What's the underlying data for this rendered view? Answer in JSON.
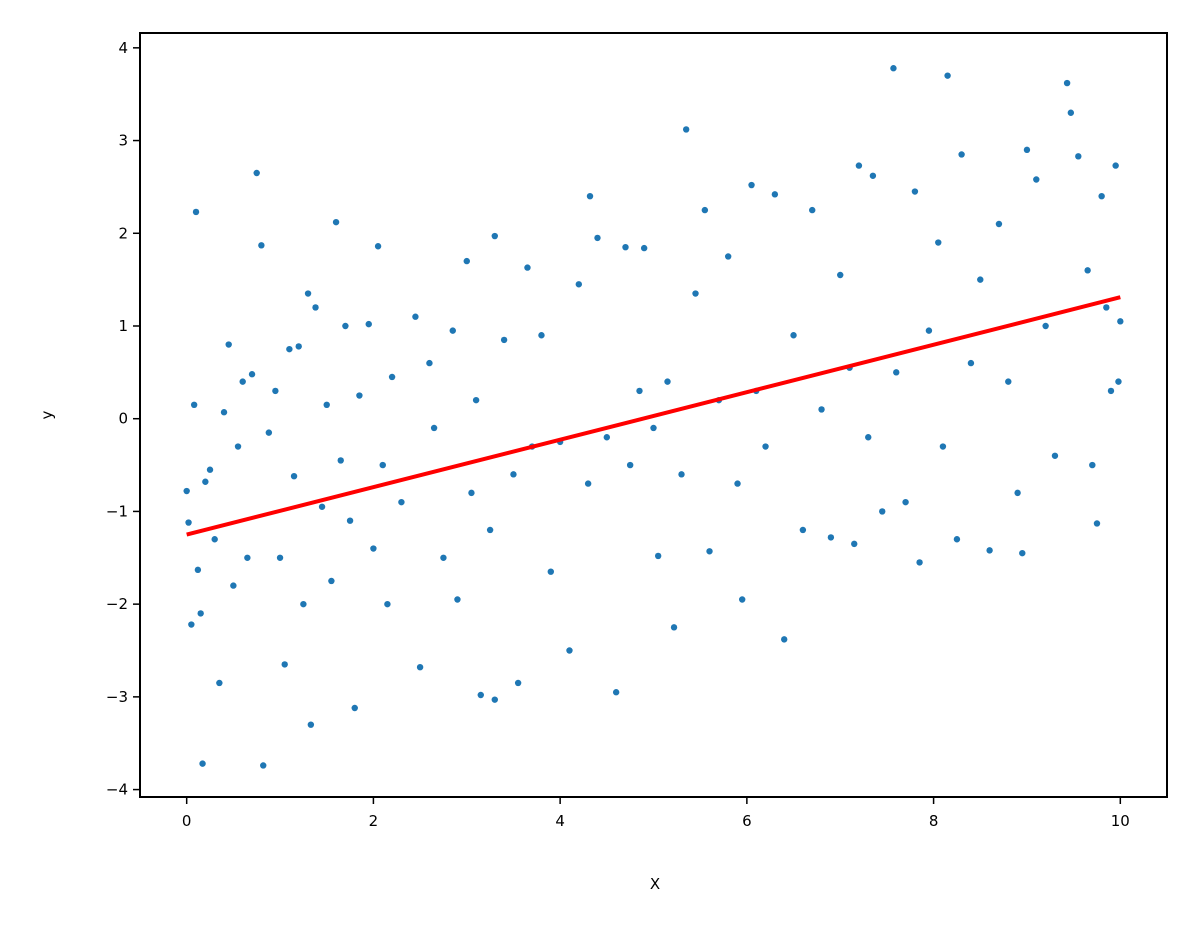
{
  "chart_data": {
    "type": "scatter",
    "xlabel": "X",
    "ylabel": "y",
    "xlim": [
      -0.5,
      10.5
    ],
    "ylim": [
      -4.08,
      4.16
    ],
    "xticks": [
      0,
      2,
      4,
      6,
      8,
      10
    ],
    "yticks": [
      {
        "value": -4,
        "label": "−4"
      },
      {
        "value": -3,
        "label": "−3"
      },
      {
        "value": -2,
        "label": "−2"
      },
      {
        "value": -1,
        "label": "−1"
      },
      0,
      1,
      2,
      3,
      4
    ],
    "series": [
      {
        "type": "scatter",
        "color": "#1f77b4",
        "x": [
          0.0,
          0.02,
          0.05,
          0.08,
          0.1,
          0.12,
          0.15,
          0.17,
          0.2,
          0.25,
          0.3,
          0.35,
          0.4,
          0.45,
          0.5,
          0.55,
          0.6,
          0.65,
          0.7,
          0.75,
          0.8,
          0.82,
          0.88,
          0.95,
          1.0,
          1.05,
          1.1,
          1.15,
          1.2,
          1.25,
          1.3,
          1.33,
          1.38,
          1.45,
          1.5,
          1.55,
          1.6,
          1.65,
          1.7,
          1.75,
          1.8,
          1.85,
          1.95,
          2.0,
          2.05,
          2.1,
          2.15,
          2.2,
          2.3,
          2.45,
          2.5,
          2.6,
          2.65,
          2.75,
          2.85,
          2.9,
          3.0,
          3.05,
          3.1,
          3.15,
          3.25,
          3.3,
          3.3,
          3.4,
          3.5,
          3.55,
          3.65,
          3.7,
          3.8,
          3.9,
          4.0,
          4.1,
          4.2,
          4.3,
          4.32,
          4.4,
          4.5,
          4.6,
          4.7,
          4.75,
          4.85,
          4.9,
          5.0,
          5.05,
          5.15,
          5.22,
          5.3,
          5.35,
          5.45,
          5.55,
          5.6,
          5.7,
          5.8,
          5.9,
          5.95,
          6.05,
          6.1,
          6.2,
          6.3,
          6.4,
          6.5,
          6.6,
          6.7,
          6.8,
          6.9,
          7.0,
          7.1,
          7.15,
          7.2,
          7.3,
          7.35,
          7.45,
          7.57,
          7.6,
          7.7,
          7.8,
          7.85,
          7.95,
          8.05,
          8.1,
          8.15,
          8.25,
          8.3,
          8.4,
          8.5,
          8.6,
          8.7,
          8.8,
          8.9,
          8.95,
          9.0,
          9.1,
          9.2,
          9.3,
          9.43,
          9.47,
          9.55,
          9.65,
          9.7,
          9.75,
          9.8,
          9.85,
          9.9,
          9.95,
          9.98,
          10.0
        ],
        "values": [
          -0.78,
          -1.12,
          -2.22,
          0.15,
          2.23,
          -1.63,
          -2.1,
          -3.72,
          -0.68,
          -0.55,
          -1.3,
          -2.85,
          0.07,
          0.8,
          -1.8,
          -0.3,
          0.4,
          -1.5,
          0.48,
          2.65,
          1.87,
          -3.74,
          -0.15,
          0.3,
          -1.5,
          -2.65,
          0.75,
          -0.62,
          0.78,
          -2.0,
          1.35,
          -3.3,
          1.2,
          -0.95,
          0.15,
          -1.75,
          2.12,
          -0.45,
          1.0,
          -1.1,
          -3.12,
          0.25,
          1.02,
          -1.4,
          1.86,
          -0.5,
          -2.0,
          0.45,
          -0.9,
          1.1,
          -2.68,
          0.6,
          -0.1,
          -1.5,
          0.95,
          -1.95,
          1.7,
          -0.8,
          0.2,
          -2.98,
          -1.2,
          1.97,
          -3.03,
          0.85,
          -0.6,
          -2.85,
          1.63,
          -0.3,
          0.9,
          -1.65,
          -0.25,
          -2.5,
          1.45,
          -0.7,
          2.4,
          1.95,
          -0.2,
          -2.95,
          1.85,
          -0.5,
          0.3,
          1.84,
          -0.1,
          -1.48,
          0.4,
          -2.25,
          -0.6,
          3.12,
          1.35,
          2.25,
          -1.43,
          0.2,
          1.75,
          -0.7,
          -1.95,
          2.52,
          0.3,
          -0.3,
          2.42,
          -2.38,
          0.9,
          -1.2,
          2.25,
          0.1,
          -1.28,
          1.55,
          0.55,
          -1.35,
          2.73,
          -0.2,
          2.62,
          -1.0,
          3.78,
          0.5,
          -0.9,
          2.45,
          -1.55,
          0.95,
          1.9,
          -0.3,
          3.7,
          -1.3,
          2.85,
          0.6,
          1.5,
          -1.42,
          2.1,
          0.4,
          -0.8,
          -1.45,
          2.9,
          2.58,
          1.0,
          -0.4,
          3.62,
          3.3,
          2.83,
          1.6,
          -0.5,
          -1.13,
          2.4,
          1.2,
          0.3,
          2.73,
          0.4,
          1.05
        ]
      },
      {
        "type": "line",
        "color": "#ff0000",
        "x": [
          0,
          10
        ],
        "values": [
          -1.25,
          1.31
        ]
      }
    ]
  }
}
